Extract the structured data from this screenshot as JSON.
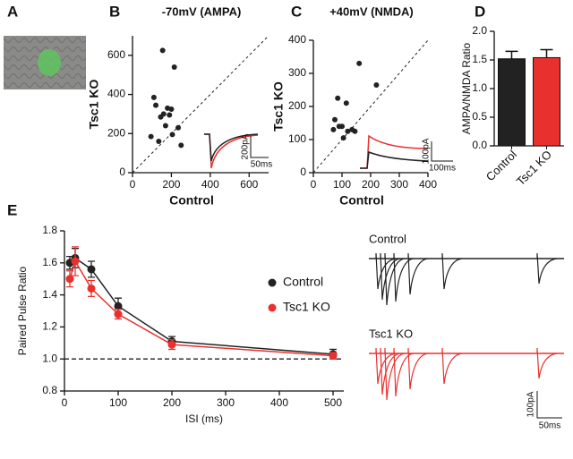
{
  "image_panel": {
    "panel": "A"
  },
  "chart_data": [
    {
      "panel": "B",
      "type": "scatter",
      "title": "-70mV (AMPA)",
      "x_label": "Control",
      "y_label": "Tsc1 KO",
      "y_label_color": "#e8312f",
      "x": [
        95,
        110,
        120,
        135,
        145,
        155,
        160,
        170,
        180,
        190,
        200,
        205,
        215,
        235,
        250
      ],
      "values": [
        185,
        385,
        345,
        160,
        285,
        625,
        300,
        240,
        330,
        295,
        325,
        195,
        540,
        230,
        140
      ],
      "color": "#222222",
      "xlim": [
        0,
        700
      ],
      "ylim": [
        0,
        700
      ],
      "xticks": [
        0,
        200,
        400,
        600
      ],
      "yticks": [
        0,
        200,
        400,
        600
      ],
      "diagonal": true,
      "scale_bar": [
        "200pA",
        "50ms"
      ]
    },
    {
      "panel": "C",
      "type": "scatter",
      "title": "+40mV (NMDA)",
      "x_label": "Control",
      "y_label": "Tsc1 KO",
      "y_label_color": "#e8312f",
      "x": [
        70,
        75,
        85,
        90,
        100,
        105,
        115,
        120,
        135,
        145,
        160,
        220
      ],
      "values": [
        130,
        160,
        225,
        140,
        140,
        105,
        210,
        125,
        130,
        125,
        330,
        265
      ],
      "color": "#222222",
      "xlim": [
        0,
        400
      ],
      "ylim": [
        0,
        400
      ],
      "xticks": [
        0,
        100,
        200,
        300,
        400
      ],
      "yticks": [
        0,
        100,
        200,
        300,
        400
      ],
      "diagonal": true,
      "scale_bar": [
        "100pA",
        "100ms"
      ]
    },
    {
      "panel": "D",
      "type": "bar",
      "y_label": "AMPA/NMDA Ratio",
      "categories": [
        "Control",
        "Tsc1 KO"
      ],
      "values": [
        1.52,
        1.54
      ],
      "errors": [
        0.13,
        0.14
      ],
      "colors": [
        "#222222",
        "#e8312f"
      ],
      "ylim": [
        0,
        2.0
      ],
      "yticks": [
        {
          "value": 0,
          "label": "0.0"
        },
        {
          "value": 0.5,
          "label": "0.5"
        },
        {
          "value": 1.0,
          "label": "1.0"
        },
        {
          "value": 1.5,
          "label": "1.5"
        },
        {
          "value": 2.0,
          "label": "2.0"
        }
      ]
    },
    {
      "panel": "E",
      "type": "line",
      "x_label": "ISI (ms)",
      "y_label": "Paired Pulse Ratio",
      "x": [
        10,
        20,
        50,
        100,
        200,
        500
      ],
      "series": [
        {
          "name": "Control",
          "color": "#222222",
          "values": [
            1.6,
            1.63,
            1.56,
            1.33,
            1.11,
            1.03
          ],
          "errors": [
            0.04,
            0.06,
            0.05,
            0.05,
            0.03,
            0.03
          ]
        },
        {
          "name": "Tsc1 KO",
          "color": "#e8312f",
          "values": [
            1.5,
            1.61,
            1.44,
            1.28,
            1.09,
            1.02
          ],
          "errors": [
            0.05,
            0.09,
            0.05,
            0.03,
            0.03,
            0.02
          ]
        }
      ],
      "xlim": [
        0,
        520
      ],
      "ylim": [
        0.8,
        1.8
      ],
      "xticks": [
        0,
        100,
        200,
        300,
        400,
        500
      ],
      "yticks": [
        0.8,
        {
          "value": 1.0,
          "label": "1.0"
        },
        1.2,
        1.4,
        1.6,
        1.8
      ],
      "reference_line": {
        "value": 1.0,
        "label": "1.0"
      },
      "traces": {
        "labels": [
          "Control",
          "Tsc1 KO"
        ],
        "scale_bar": [
          "100pA",
          "50ms"
        ]
      }
    }
  ]
}
